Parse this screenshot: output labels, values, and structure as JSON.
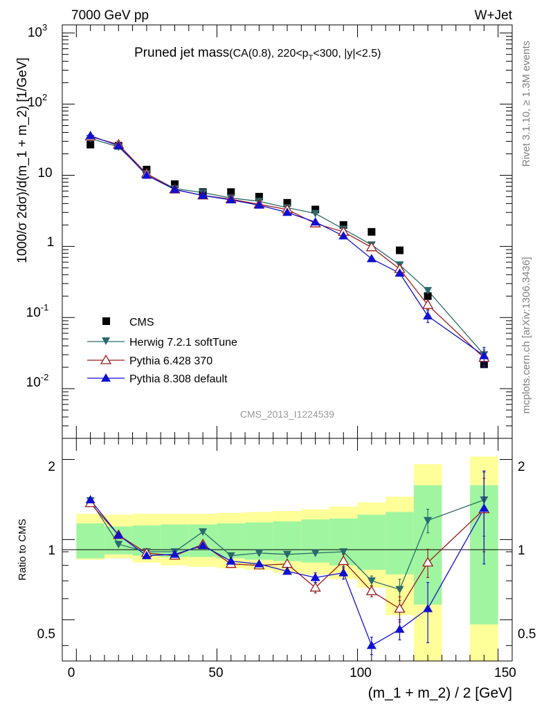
{
  "header": {
    "energy_label": "7000 GeV pp",
    "process_label": "W+Jet",
    "plot_title_main": "Pruned jet mass",
    "plot_title_sub": "(CA(0.8), 220<p",
    "plot_title_sub_idx": "T",
    "plot_title_sub_end": "<300, |y|<2.5)",
    "analysis_id": "CMS_2013_I1224539",
    "rivet_label": "Rivet 3.1.10, ≥ 1.3M events",
    "site_label": "mcplots.cern.ch [arXiv:1306.3436]"
  },
  "axes": {
    "main_ylabel": "1000/σ 2dσ)/d(m_1 + m_2) [1/GeV]",
    "ratio_ylabel": "Ratio to CMS",
    "xlabel": "(m_1 + m_2) / 2 [GeV]",
    "x_ticks": [
      "0",
      "50",
      "100",
      "150"
    ],
    "ratio_ticks": [
      "0.5",
      "1",
      "2"
    ],
    "main_tick_labels": [
      "10",
      "10",
      "10",
      "1",
      "10",
      "10",
      "10"
    ],
    "main_tick_exps": [
      "-2",
      "-1",
      "",
      "",
      "",
      "2",
      "3"
    ]
  },
  "legend": {
    "cms": "CMS",
    "herwig": "Herwig 7.2.1 softTune",
    "py6": "Pythia 6.428 370",
    "py8": "Pythia 8.308 default"
  },
  "colors": {
    "cms": "#000000",
    "herwig": "#2b6a6c",
    "py6": "#9b1b1b",
    "py8": "#1010d0",
    "band_inner": "#a0f5a0",
    "band_outer": "#ffff99"
  },
  "chart_data": [
    {
      "type": "scatter",
      "scale": "log",
      "xlim": [
        -5,
        155
      ],
      "ylim": [
        0.002,
        1300
      ],
      "x": [
        5,
        15,
        25,
        35,
        45,
        55,
        65,
        75,
        85,
        95,
        105,
        115,
        125,
        145
      ],
      "series": [
        {
          "name": "CMS",
          "values": [
            27,
            26,
            12,
            7.5,
            5.8,
            5.8,
            5.0,
            4.1,
            3.3,
            2.0,
            1.6,
            0.88,
            0.2,
            0.022
          ]
        },
        {
          "name": "Herwig 7.2.1 softTune",
          "values": [
            33,
            25,
            10.5,
            6.5,
            5.7,
            4.8,
            4.3,
            3.5,
            2.9,
            1.75,
            1.05,
            0.55,
            0.24,
            0.03
          ],
          "err": [
            0,
            0,
            0,
            0,
            0,
            0,
            0,
            0,
            0,
            0,
            0,
            0,
            0,
            0.005
          ]
        },
        {
          "name": "Pythia 6.428 370",
          "values": [
            35,
            27,
            10.5,
            6.3,
            5.2,
            4.6,
            3.9,
            3.3,
            2.1,
            1.6,
            0.97,
            0.48,
            0.15,
            0.027
          ],
          "err": [
            0,
            0,
            0,
            0,
            0,
            0,
            0,
            0,
            0,
            0.1,
            0.05,
            0.03,
            0.02,
            0.006
          ]
        },
        {
          "name": "Pythia 8.308 default",
          "values": [
            36,
            26,
            10.0,
            6.3,
            5.2,
            4.5,
            3.8,
            3.0,
            2.2,
            1.4,
            0.67,
            0.42,
            0.105,
            0.029
          ],
          "err": [
            0,
            0,
            0,
            0,
            0,
            0,
            0,
            0,
            0,
            0.08,
            0.04,
            0.03,
            0.02,
            0.009
          ]
        }
      ]
    },
    {
      "type": "scatter",
      "title": "Ratio to CMS",
      "scale": "log",
      "xlim": [
        -5,
        155
      ],
      "ylim": [
        0.35,
        2.4
      ],
      "x": [
        5,
        15,
        25,
        35,
        45,
        55,
        65,
        75,
        85,
        95,
        105,
        115,
        125,
        145
      ],
      "band_edges": [
        0,
        10,
        20,
        30,
        40,
        50,
        60,
        70,
        80,
        90,
        100,
        110,
        120,
        130,
        140,
        150
      ],
      "band_inner": [
        [
          0.85,
          1.15
        ],
        [
          0.88,
          1.12
        ],
        [
          0.87,
          1.13
        ],
        [
          0.86,
          1.14
        ],
        [
          0.86,
          1.14
        ],
        [
          0.85,
          1.15
        ],
        [
          0.84,
          1.16
        ],
        [
          0.83,
          1.17
        ],
        [
          0.82,
          1.19
        ],
        [
          0.8,
          1.2
        ],
        [
          0.77,
          1.24
        ],
        [
          0.74,
          1.27
        ],
        [
          0.57,
          1.6
        ],
        [
          null,
          null
        ],
        [
          0.48,
          1.6
        ]
      ],
      "band_outer": [
        [
          0.84,
          1.25
        ],
        [
          0.85,
          1.24
        ],
        [
          0.82,
          1.25
        ],
        [
          0.8,
          1.25
        ],
        [
          0.79,
          1.25
        ],
        [
          0.78,
          1.26
        ],
        [
          0.77,
          1.27
        ],
        [
          0.75,
          1.28
        ],
        [
          0.74,
          1.3
        ],
        [
          0.71,
          1.33
        ],
        [
          0.66,
          1.38
        ],
        [
          0.52,
          1.45
        ],
        [
          0.35,
          1.92
        ],
        [
          null,
          null
        ],
        [
          0.35,
          2.05
        ]
      ],
      "series": [
        {
          "name": "Herwig 7.2.1 softTune",
          "values": [
            1.4,
            0.96,
            0.9,
            0.9,
            1.07,
            0.87,
            0.89,
            0.88,
            0.89,
            0.9,
            0.7,
            0.65,
            1.18,
            1.41
          ],
          "err": [
            0,
            0,
            0,
            0,
            0,
            0,
            0,
            0,
            0,
            0,
            0.03,
            0.06,
            0.12,
            0.38
          ]
        },
        {
          "name": "Pythia 6.428 370",
          "values": [
            1.37,
            1.04,
            0.89,
            0.87,
            0.96,
            0.81,
            0.8,
            0.81,
            0.66,
            0.83,
            0.64,
            0.55,
            0.82,
            1.3
          ],
          "err": [
            0,
            0,
            0,
            0,
            0,
            0,
            0,
            0,
            0.03,
            0.05,
            0.03,
            0.06,
            0.1,
            0.4
          ]
        },
        {
          "name": "Pythia 8.308 default",
          "values": [
            1.41,
            1.04,
            0.87,
            0.88,
            0.95,
            0.83,
            0.81,
            0.76,
            0.72,
            0.75,
            0.4,
            0.46,
            0.55,
            1.31
          ],
          "err": [
            0,
            0,
            0,
            0,
            0,
            0,
            0,
            0,
            0.03,
            0.04,
            0.03,
            0.04,
            0.14,
            0.5
          ]
        }
      ]
    }
  ]
}
